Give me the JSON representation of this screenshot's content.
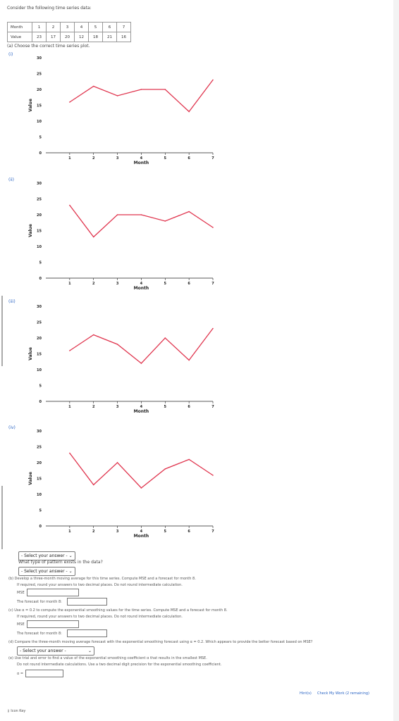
{
  "intro": "Consider the following time series data:",
  "table": {
    "row1_label": "Month",
    "row2_label": "Value",
    "months": [
      "1",
      "2",
      "3",
      "4",
      "5",
      "6",
      "7"
    ],
    "values": [
      "23",
      "17",
      "20",
      "12",
      "18",
      "21",
      "16"
    ]
  },
  "part_a": "(a) Choose the correct time series plot.",
  "options": [
    "(i)",
    "(ii)",
    "(iii)",
    "(iv)"
  ],
  "chart_data": [
    {
      "type": "line",
      "x": [
        1,
        2,
        3,
        4,
        5,
        6,
        7
      ],
      "y": [
        16,
        21,
        18,
        20,
        20,
        13,
        23
      ],
      "xlabel": "Month",
      "ylabel": "Value",
      "ylim": [
        0,
        30
      ],
      "yticks": [
        0,
        5,
        10,
        15,
        20,
        25,
        30
      ],
      "color": "#e0364f"
    },
    {
      "type": "line",
      "x": [
        1,
        2,
        3,
        4,
        5,
        6,
        7
      ],
      "y": [
        23,
        13,
        20,
        20,
        18,
        21,
        16
      ],
      "xlabel": "Month",
      "ylabel": "Value",
      "ylim": [
        0,
        30
      ],
      "yticks": [
        0,
        5,
        10,
        15,
        20,
        25,
        30
      ],
      "color": "#e0364f"
    },
    {
      "type": "line",
      "x": [
        1,
        2,
        3,
        4,
        5,
        6,
        7
      ],
      "y": [
        16,
        21,
        18,
        12,
        20,
        13,
        23
      ],
      "xlabel": "Month",
      "ylabel": "Value",
      "ylim": [
        0,
        30
      ],
      "yticks": [
        0,
        5,
        10,
        15,
        20,
        25,
        30
      ],
      "color": "#e0364f"
    },
    {
      "type": "line",
      "x": [
        1,
        2,
        3,
        4,
        5,
        6,
        7
      ],
      "y": [
        23,
        13,
        20,
        12,
        18,
        21,
        16
      ],
      "xlabel": "Month",
      "ylabel": "Value",
      "ylim": [
        0,
        30
      ],
      "yticks": [
        0,
        5,
        10,
        15,
        20,
        25,
        30
      ],
      "color": "#e0364f"
    }
  ],
  "select1": "- Select your answer -",
  "pattern_q": "What type of pattern exists in the data?",
  "select2": "- Select your answer -",
  "part_b": "(b) Develop a three-month moving average for this time series. Compute MSE and a forecast for month 8.",
  "part_b_note": "If required, round your answers to two decimal places. Do not round intermediate calculation.",
  "mse_label": "MSE",
  "forecast_label": "The forecast for month 8:",
  "part_c": "(c) Use α = 0.2 to compute the exponential smoothing values for the time series. Compute MSE and a forecast for month 8.",
  "part_c_note": "If required, round your answers to two decimal places. Do not round intermediate calculation.",
  "mse_label2": "MSE",
  "forecast_label2": "The forecast for month 8:",
  "part_d": "(d) Compare the three-month moving average forecast with the exponential smoothing forecast using α = 0.2. Which appears to provide the better forecast based on MSE?",
  "select3": "- Select your answer -",
  "part_e": "(e) Use trial and error to find a value of the exponential smoothing coefficient α that results in the smallest MSE.",
  "part_e_note": "Do not round intermediate calculations. Use a two decimal digit precision for the exponential smoothing coefficient.",
  "alpha_label": "α =",
  "hint": "Hint(s)",
  "check": "Check My Work (2 remaining)",
  "icon_key": "Icon Key"
}
